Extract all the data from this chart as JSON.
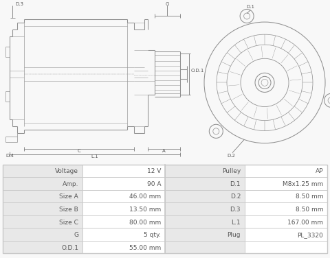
{
  "bg_color": "#f8f8f8",
  "diagram_bg": "#f8f8f8",
  "table_border": "#c8c8c8",
  "table_left_bg": "#e8e8e8",
  "table_right_bg": "#ffffff",
  "text_color": "#555555",
  "line_color": "#909090",
  "dim_color": "#707070",
  "rows": [
    [
      "Voltage",
      "12 V",
      "Pulley",
      "AP"
    ],
    [
      "Amp.",
      "90 A",
      "D.1",
      "M8x1.25 mm"
    ],
    [
      "Size A",
      "46.00 mm",
      "D.2",
      "8.50 mm"
    ],
    [
      "Size B",
      "13.50 mm",
      "D.3",
      "8.50 mm"
    ],
    [
      "Size C",
      "80.00 mm",
      "L.1",
      "167.00 mm"
    ],
    [
      "G",
      "5 qty.",
      "Plug",
      "PL_3320"
    ],
    [
      "O.D.1",
      "55.00 mm",
      "",
      ""
    ]
  ]
}
